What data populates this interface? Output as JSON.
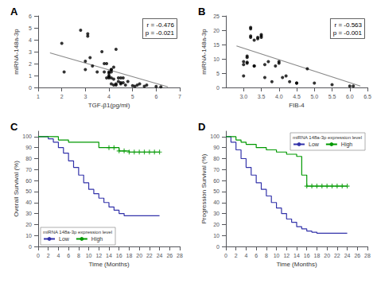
{
  "chart_data": [
    {
      "type": "scatter",
      "title": "A",
      "xlabel": "TGF-β1(pg/ml)",
      "ylabel": "miRNA-148a-3p",
      "annotation": "r = -0.476\np = -0.021",
      "xlim": [
        1,
        7
      ],
      "ylim": [
        0,
        6
      ],
      "xticks": [
        1,
        2,
        3,
        4,
        5,
        6,
        7
      ],
      "yticks": [
        0,
        1,
        2,
        3,
        4,
        5,
        6
      ],
      "grid": false,
      "series": [
        {
          "type": "scatter",
          "marker": "circle",
          "color": "#000000",
          "x": [
            2.0,
            2.1,
            2.8,
            3.0,
            3.0,
            3.1,
            3.1,
            3.2,
            3.3,
            3.5,
            3.7,
            3.8,
            3.8,
            3.9,
            3.9,
            4.0,
            4.0,
            4.0,
            4.0,
            4.0,
            4.1,
            4.1,
            4.1,
            4.1,
            4.1,
            4.2,
            4.2,
            4.2,
            4.3,
            4.3,
            4.3,
            4.4,
            4.4,
            4.5,
            4.5,
            4.5,
            4.6,
            4.6,
            4.7,
            4.8,
            5.0,
            5.1,
            5.2,
            5.3,
            5.5,
            5.6,
            6.0,
            6.2
          ],
          "values": [
            3.7,
            1.3,
            4.8,
            2.2,
            1.5,
            4.5,
            4.3,
            2.5,
            1.8,
            1.3,
            3.0,
            1.3,
            2.0,
            0.8,
            2.0,
            1.3,
            1.2,
            1.0,
            0.9,
            0.8,
            1.5,
            1.5,
            1.3,
            0.8,
            0.3,
            1.7,
            0.7,
            0.2,
            3.2,
            0.3,
            0.2,
            0.8,
            0.5,
            0.4,
            0.3,
            0.8,
            0.4,
            0.8,
            0.2,
            0.5,
            0.15,
            0.1,
            0.2,
            0.3,
            0.1,
            0.2,
            0.08,
            0.05
          ]
        },
        {
          "type": "line",
          "color": "#888888",
          "x": [
            1.5,
            6.5
          ],
          "values": [
            2.9,
            0.05
          ]
        }
      ]
    },
    {
      "type": "scatter",
      "title": "B",
      "xlabel": "FIB-4",
      "ylabel": "miRNA-148a-3p",
      "annotation": "r = -0.563\np = -0.001",
      "xlim": [
        2.5,
        6.5
      ],
      "ylim": [
        0,
        25
      ],
      "xticks": [
        {
          "value": 3,
          "label": "3.0"
        },
        3.5,
        {
          "value": 4,
          "label": "4.0"
        },
        4.5,
        {
          "value": 5,
          "label": "5.0"
        },
        5.5,
        {
          "value": 6,
          "label": "6.0"
        },
        6.5
      ],
      "yticks": [
        0,
        5,
        10,
        15,
        20,
        25
      ],
      "grid": false,
      "series": [
        {
          "type": "scatter",
          "marker": "circle",
          "color": "#000000",
          "x": [
            3.0,
            3.0,
            3.0,
            3.1,
            3.1,
            3.1,
            3.1,
            3.2,
            3.2,
            3.2,
            3.2,
            3.3,
            3.3,
            3.3,
            3.4,
            3.4,
            3.5,
            3.5,
            3.5,
            3.6,
            3.6,
            3.7,
            3.8,
            3.9,
            4.0,
            4.0,
            4.1,
            4.2,
            4.3,
            4.5,
            4.5,
            4.8,
            5.0,
            5.5,
            6.0,
            6.1
          ],
          "values": [
            8.0,
            9.0,
            4.0,
            8.5,
            8.8,
            10.5,
            11.0,
            17.5,
            18.0,
            21.0,
            20.5,
            7.5,
            7.5,
            16.5,
            17.0,
            17.5,
            18.0,
            17.5,
            18.5,
            8.0,
            3.5,
            9.0,
            2.0,
            7.5,
            9.0,
            8.5,
            3.5,
            4.0,
            2.0,
            1.5,
            1.5,
            6.5,
            1.5,
            1.0,
            0.5,
            0.5
          ]
        },
        {
          "type": "line",
          "color": "#888888",
          "x": [
            2.8,
            6.3
          ],
          "values": [
            14.5,
            0.5
          ]
        }
      ]
    },
    {
      "type": "step",
      "title": "C",
      "xlabel": "Time (Months)",
      "ylabel": "Overall Survival (%)",
      "xlim": [
        0,
        28
      ],
      "ylim": [
        0,
        105
      ],
      "xticks": [
        0,
        2,
        4,
        6,
        8,
        10,
        12,
        14,
        16,
        18,
        20,
        22,
        24,
        26,
        28
      ],
      "yticks": [
        0,
        10,
        20,
        30,
        40,
        50,
        60,
        70,
        80,
        90,
        100
      ],
      "grid": false,
      "legend": "lower left",
      "legend_title": "miRNA 148a-3p expression level",
      "series": [
        {
          "name": "Low",
          "type": "step",
          "color": "#3333aa",
          "x": [
            0,
            1,
            2,
            3,
            4,
            5,
            6,
            7,
            8,
            9,
            10,
            11,
            12,
            13,
            14,
            15,
            16,
            17,
            18,
            24
          ],
          "values": [
            100,
            100,
            98,
            95,
            90,
            85,
            78,
            72,
            65,
            58,
            52,
            48,
            44,
            40,
            36,
            33,
            30,
            28,
            28,
            28
          ]
        },
        {
          "name": "High",
          "type": "step",
          "color": "#009900",
          "x": [
            0,
            2,
            4,
            6,
            12,
            14,
            16,
            17,
            18,
            24
          ],
          "values": [
            100,
            100,
            97,
            95,
            90,
            90,
            87,
            87,
            86,
            86
          ]
        },
        {
          "type": "scatter",
          "marker": "plus",
          "color": "#009900",
          "x": [
            14,
            15,
            16,
            17,
            18,
            19,
            20,
            21,
            22,
            23,
            24
          ],
          "values": [
            90,
            90,
            87,
            87,
            86,
            86,
            86,
            86,
            86,
            86,
            86
          ]
        }
      ]
    },
    {
      "type": "step",
      "title": "D",
      "xlabel": "Time (Months)",
      "ylabel": "Progression Survival (%)",
      "xlim": [
        0,
        28
      ],
      "ylim": [
        0,
        105
      ],
      "xticks": [
        0,
        2,
        4,
        6,
        8,
        10,
        12,
        14,
        16,
        18,
        20,
        22,
        24,
        26,
        28
      ],
      "yticks": [
        0,
        10,
        20,
        30,
        40,
        50,
        60,
        70,
        80,
        90,
        100
      ],
      "grid": false,
      "legend": "upper right",
      "legend_title": "miRNA 148a-3p expression level",
      "series": [
        {
          "name": "Low",
          "type": "step",
          "color": "#3333aa",
          "x": [
            0,
            1,
            2,
            3,
            4,
            5,
            6,
            7,
            8,
            9,
            10,
            11,
            12,
            13,
            14,
            15,
            16,
            17,
            18,
            19,
            24
          ],
          "values": [
            100,
            95,
            88,
            80,
            72,
            65,
            58,
            52,
            46,
            40,
            35,
            30,
            25,
            22,
            18,
            16,
            14,
            13,
            12,
            12,
            12
          ]
        },
        {
          "name": "High",
          "type": "step",
          "color": "#009900",
          "x": [
            0,
            1,
            2,
            3,
            4,
            6,
            8,
            10,
            12,
            14,
            15,
            16,
            17,
            18,
            20,
            24
          ],
          "values": [
            100,
            100,
            97,
            95,
            93,
            90,
            88,
            86,
            84,
            82,
            65,
            55,
            55,
            55,
            55,
            55
          ]
        },
        {
          "type": "scatter",
          "marker": "plus",
          "color": "#009900",
          "x": [
            16,
            17,
            18,
            19,
            20,
            21,
            22,
            23,
            24
          ],
          "values": [
            55,
            55,
            55,
            55,
            55,
            55,
            55,
            55,
            55
          ]
        }
      ]
    }
  ]
}
